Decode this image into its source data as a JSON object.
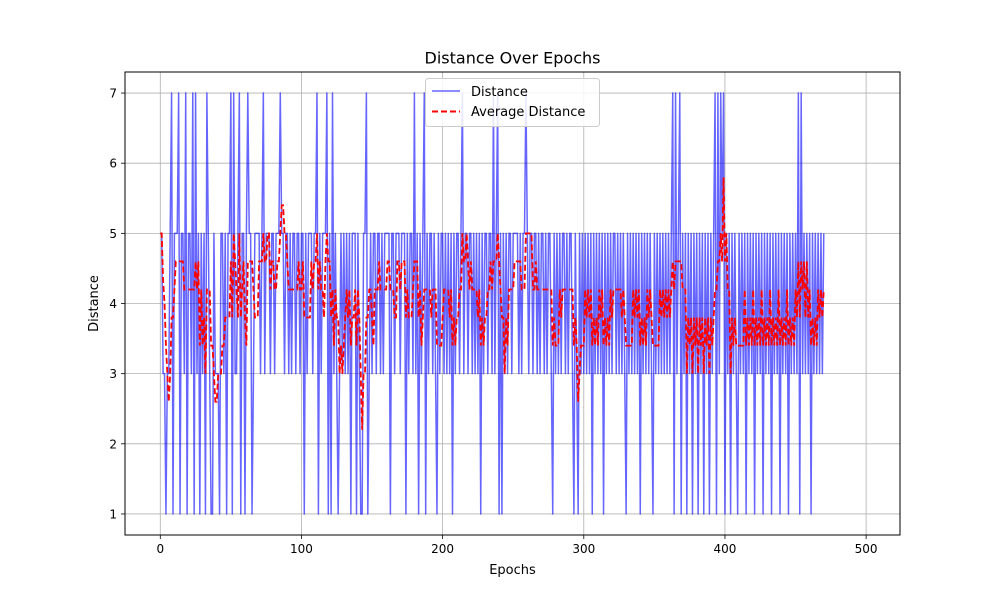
{
  "chart_data": {
    "type": "line",
    "title": "Distance Over Epochs",
    "xlabel": "Epochs",
    "ylabel": "Distance",
    "xlim": [
      -25,
      524
    ],
    "ylim": [
      0.7,
      7.3
    ],
    "xticks": [
      0,
      100,
      200,
      300,
      400,
      500
    ],
    "yticks": [
      1,
      2,
      3,
      4,
      5,
      6,
      7
    ],
    "grid": true,
    "legend_position": "top-center",
    "series": [
      {
        "name": "Distance",
        "color": "#0000ff",
        "style": "solid",
        "x_start": 0,
        "x_step": 1,
        "values": [
          5,
          5,
          3,
          3,
          1,
          3,
          3,
          5,
          7,
          1,
          5,
          5,
          5,
          7,
          1,
          5,
          5,
          3,
          7,
          1,
          5,
          5,
          3,
          7,
          1,
          7,
          3,
          5,
          1,
          5,
          3,
          5,
          1,
          7,
          5,
          3,
          1,
          1,
          5,
          3,
          3,
          3,
          1,
          5,
          5,
          3,
          5,
          1,
          5,
          5,
          7,
          1,
          7,
          3,
          3,
          5,
          7,
          1,
          5,
          5,
          1,
          5,
          7,
          5,
          5,
          1,
          3,
          5,
          5,
          5,
          5,
          3,
          5,
          7,
          3,
          5,
          5,
          5,
          3,
          5,
          5,
          3,
          5,
          5,
          5,
          7,
          5,
          5,
          3,
          5,
          5,
          3,
          5,
          3,
          5,
          5,
          3,
          5,
          5,
          3,
          5,
          5,
          1,
          5,
          3,
          5,
          5,
          5,
          3,
          5,
          5,
          7,
          1,
          5,
          3,
          5,
          5,
          5,
          7,
          1,
          5,
          1,
          7,
          3,
          5,
          3,
          1,
          3,
          5,
          3,
          5,
          3,
          5,
          3,
          5,
          1,
          5,
          5,
          5,
          1,
          5,
          3,
          1,
          1,
          5,
          5,
          7,
          1,
          3,
          5,
          3,
          5,
          5,
          3,
          5,
          5,
          3,
          5,
          3,
          5,
          5,
          5,
          5,
          1,
          5,
          5,
          3,
          5,
          5,
          5,
          3,
          5,
          5,
          5,
          1,
          5,
          3,
          5,
          5,
          3,
          7,
          3,
          5,
          1,
          5,
          3,
          5,
          7,
          1,
          5,
          3,
          5,
          5,
          3,
          5,
          3,
          1,
          5,
          3,
          5,
          5,
          3,
          5,
          3,
          5,
          3,
          5,
          1,
          5,
          3,
          5,
          5,
          3,
          5,
          7,
          3,
          5,
          5,
          3,
          5,
          5,
          3,
          5,
          3,
          5,
          3,
          5,
          1,
          5,
          3,
          5,
          5,
          3,
          5,
          5,
          3,
          7,
          3,
          5,
          7,
          1,
          5,
          1,
          5,
          3,
          5,
          3,
          5,
          5,
          3,
          5,
          5,
          5,
          5,
          3,
          5,
          3,
          5,
          5,
          7,
          5,
          3,
          5,
          5,
          3,
          5,
          5,
          3,
          5,
          3,
          5,
          5,
          3,
          5,
          3,
          5,
          5,
          3,
          1,
          5,
          3,
          5,
          3,
          5,
          3,
          5,
          5,
          3,
          5,
          3,
          5,
          5,
          3,
          1,
          5,
          3,
          1,
          5,
          3,
          5,
          3,
          5,
          3,
          5,
          3,
          5,
          1,
          5,
          3,
          5,
          3,
          5,
          3,
          5,
          1,
          5,
          3,
          5,
          3,
          5,
          3,
          5,
          5,
          3,
          5,
          3,
          5,
          3,
          5,
          3,
          1,
          5,
          3,
          5,
          3,
          5,
          3,
          5,
          3,
          5,
          1,
          5,
          3,
          5,
          3,
          5,
          3,
          5,
          3,
          1,
          5,
          3,
          5,
          3,
          5,
          3,
          5,
          3,
          5,
          3,
          5,
          3,
          5,
          7,
          1,
          7,
          3,
          5,
          7,
          1,
          5,
          3,
          5,
          1,
          5,
          3,
          5,
          1,
          5,
          3,
          5,
          1,
          5,
          3,
          5,
          1,
          5,
          3,
          5,
          1,
          5,
          3,
          5,
          7,
          1,
          7,
          3,
          7,
          5,
          7,
          1,
          5,
          3,
          5,
          1,
          5,
          3,
          5,
          3,
          1,
          5,
          3,
          5,
          3,
          5,
          1,
          5,
          3,
          5,
          3,
          5,
          1,
          5,
          3,
          5,
          3,
          5,
          1,
          5,
          3,
          5,
          3,
          5,
          1,
          5,
          3,
          5,
          3,
          5,
          1,
          5,
          3,
          5,
          3,
          5,
          1,
          5,
          3,
          5,
          3,
          5,
          3,
          7,
          1,
          7,
          3,
          5,
          3,
          5,
          3,
          5,
          1,
          5,
          3,
          5,
          3,
          5,
          3,
          5,
          3,
          5
        ]
      },
      {
        "name": "Average Distance",
        "color": "#ff0000",
        "style": "dashed",
        "x_start": 0,
        "x_step": 1
      }
    ]
  }
}
